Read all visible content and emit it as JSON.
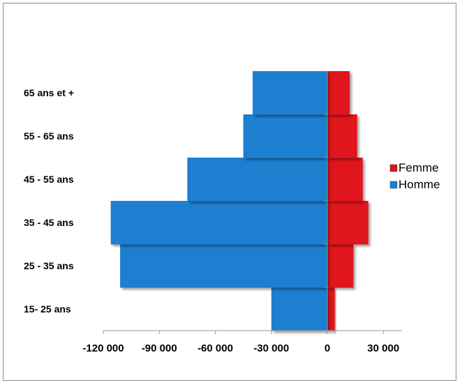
{
  "chart_data": {
    "type": "bar",
    "orientation": "horizontal",
    "categories": [
      "15- 25 ans",
      "25 - 35 ans",
      "35 - 45 ans",
      "45 - 55 ans",
      "55 - 65 ans",
      "65 ans et +"
    ],
    "series": [
      {
        "name": "Femme",
        "color": "#e0121b",
        "values": [
          4000,
          14000,
          22000,
          19000,
          16000,
          12000
        ]
      },
      {
        "name": "Homme",
        "color": "#1a7fd0",
        "values": [
          -30000,
          -111000,
          -116000,
          -75000,
          -45000,
          -40000
        ]
      }
    ],
    "x_ticks": [
      -120000,
      -90000,
      -60000,
      -30000,
      0,
      30000
    ],
    "x_tick_labels": [
      "-120 000",
      "-90 000",
      "-60 000",
      "-30 000",
      "0",
      "30 000"
    ],
    "xlim": [
      -120000,
      40000
    ],
    "legend_position": "right",
    "title": "",
    "xlabel": "",
    "ylabel": ""
  }
}
